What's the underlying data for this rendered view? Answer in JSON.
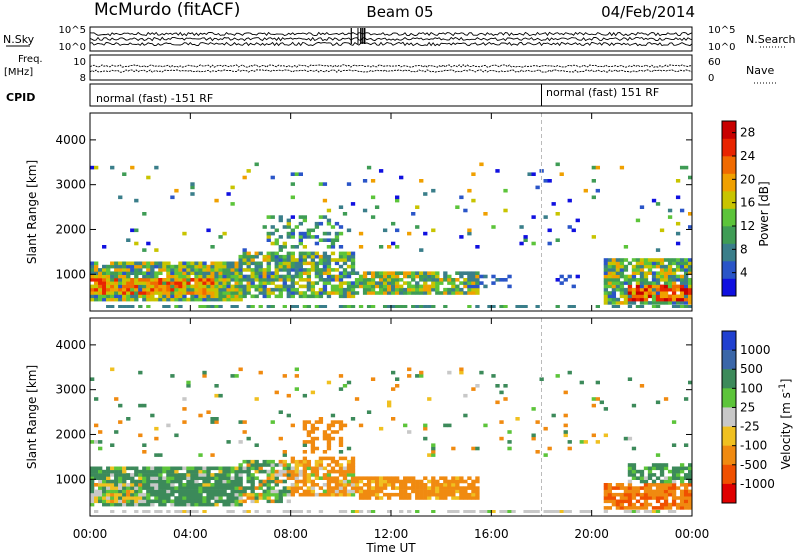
{
  "header": {
    "station": "McMurdo (fitACF)",
    "beam": "Beam 05",
    "date": "04/Feb/2014"
  },
  "strip": {
    "nsky_label": "N.Sky",
    "nsky_top": "10^5",
    "nsky_bottom": "10^0",
    "freq_label": "Freq.",
    "freq_unit": "[MHz]",
    "freq_top": "10",
    "freq_bottom": "8",
    "cpid_label": "CPID",
    "nsearch_label": "N.Search",
    "nsearch_top": "10^5",
    "nsearch_bottom": "10^0",
    "nave_label": "Nave",
    "nave_top": "60",
    "nave_bottom": "0",
    "cpid_left": "normal (fast) -151 RF",
    "cpid_right": "normal (fast) 151 RF",
    "cpid_change_hour": 18.0
  },
  "chart_data": [
    {
      "type": "heatmap",
      "name": "power",
      "ylabel": "Slant Range [km]",
      "xlabel": "Time UT",
      "x_ticks": [
        "00:00",
        "04:00",
        "08:00",
        "12:00",
        "16:00",
        "20:00",
        "00:00"
      ],
      "xlim_hours": [
        0,
        24
      ],
      "y_ticks": [
        1000,
        2000,
        3000,
        4000
      ],
      "ylim_km": [
        180,
        4600
      ],
      "colorbar": {
        "label": "Power [dB]",
        "ticks": [
          "4",
          "8",
          "12",
          "16",
          "20",
          "24",
          "28"
        ],
        "range": [
          0,
          30
        ],
        "colors": [
          "#1010e0",
          "#2a55c8",
          "#3a7e8a",
          "#3f9c55",
          "#5cc43a",
          "#c8c400",
          "#f0a000",
          "#f06a00",
          "#e82400",
          "#c80000"
        ]
      },
      "echo_regions": [
        {
          "t0": 0.0,
          "t1": 6.0,
          "r0": 400,
          "r1": 1300,
          "value": 13,
          "spread": 8,
          "density": 0.92
        },
        {
          "t0": 0.0,
          "t1": 5.0,
          "r0": 550,
          "r1": 900,
          "value": 21,
          "spread": 6,
          "density": 0.8
        },
        {
          "t0": 6.0,
          "t1": 10.5,
          "r0": 500,
          "r1": 1500,
          "value": 12,
          "spread": 7,
          "density": 0.75
        },
        {
          "t0": 7.0,
          "t1": 10.0,
          "r0": 1600,
          "r1": 2300,
          "value": 10,
          "spread": 6,
          "density": 0.35
        },
        {
          "t0": 10.5,
          "t1": 15.5,
          "r0": 550,
          "r1": 1050,
          "value": 14,
          "spread": 7,
          "density": 0.85
        },
        {
          "t0": 15.0,
          "t1": 17.0,
          "r0": 700,
          "r1": 1000,
          "value": 6,
          "spread": 3,
          "density": 0.35
        },
        {
          "t0": 18.5,
          "t1": 19.5,
          "r0": 700,
          "r1": 1000,
          "value": 5,
          "spread": 3,
          "density": 0.3
        },
        {
          "t0": 20.5,
          "t1": 24.0,
          "r0": 350,
          "r1": 1350,
          "value": 12,
          "spread": 8,
          "density": 0.85
        },
        {
          "t0": 21.5,
          "t1": 24.0,
          "r0": 400,
          "r1": 800,
          "value": 24,
          "spread": 5,
          "density": 0.8
        }
      ],
      "sparse_noise": {
        "r0": 1500,
        "r1": 3500,
        "density": 0.04,
        "value": 10,
        "spread": 10
      }
    },
    {
      "type": "heatmap",
      "name": "velocity",
      "ylabel": "Slant Range [km]",
      "xlabel": "Time UT",
      "x_ticks": [
        "00:00",
        "04:00",
        "08:00",
        "12:00",
        "16:00",
        "20:00",
        "00:00"
      ],
      "xlim_hours": [
        0,
        24
      ],
      "y_ticks": [
        1000,
        2000,
        3000,
        4000
      ],
      "ylim_km": [
        180,
        4600
      ],
      "colorbar": {
        "label": "Velocity [m s^-1]",
        "ticks": [
          "1000",
          "500",
          "100",
          "25",
          "-25",
          "-100",
          "-500",
          "-1000"
        ],
        "bins": [
          {
            "min": 1000,
            "color": "#2040d0"
          },
          {
            "min": 500,
            "color": "#3a66a8"
          },
          {
            "min": 100,
            "color": "#3c8a5a"
          },
          {
            "min": 25,
            "color": "#5cc43a"
          },
          {
            "min": -25,
            "color": "#c8c8c8"
          },
          {
            "min": -100,
            "color": "#f0c020"
          },
          {
            "min": -500,
            "color": "#f08a10"
          },
          {
            "min": -1000,
            "color": "#f05000"
          },
          {
            "min": -100000,
            "color": "#e00000"
          }
        ]
      },
      "echo_regions": [
        {
          "t0": 0.0,
          "t1": 6.0,
          "r0": 400,
          "r1": 1300,
          "value": 200,
          "spread": 250,
          "density": 0.92
        },
        {
          "t0": 0.0,
          "t1": 2.0,
          "r0": 500,
          "r1": 900,
          "value": -40,
          "spread": 80,
          "density": 0.7
        },
        {
          "t0": 6.0,
          "t1": 8.0,
          "r0": 500,
          "r1": 1400,
          "value": 80,
          "spread": 250,
          "density": 0.7
        },
        {
          "t0": 8.0,
          "t1": 10.5,
          "r0": 600,
          "r1": 1500,
          "value": -200,
          "spread": 250,
          "density": 0.75
        },
        {
          "t0": 8.5,
          "t1": 10.0,
          "r0": 1600,
          "r1": 2300,
          "value": -300,
          "spread": 200,
          "density": 0.4
        },
        {
          "t0": 10.5,
          "t1": 15.5,
          "r0": 550,
          "r1": 1050,
          "value": -250,
          "spread": 200,
          "density": 0.85
        },
        {
          "t0": 20.5,
          "t1": 24.0,
          "r0": 350,
          "r1": 900,
          "value": -400,
          "spread": 300,
          "density": 0.8
        },
        {
          "t0": 21.5,
          "t1": 24.0,
          "r0": 900,
          "r1": 1350,
          "value": 150,
          "spread": 150,
          "density": 0.6
        }
      ],
      "sparse_noise": {
        "r0": 1500,
        "r1": 3500,
        "density": 0.04,
        "value": 0,
        "spread": 400
      }
    }
  ]
}
